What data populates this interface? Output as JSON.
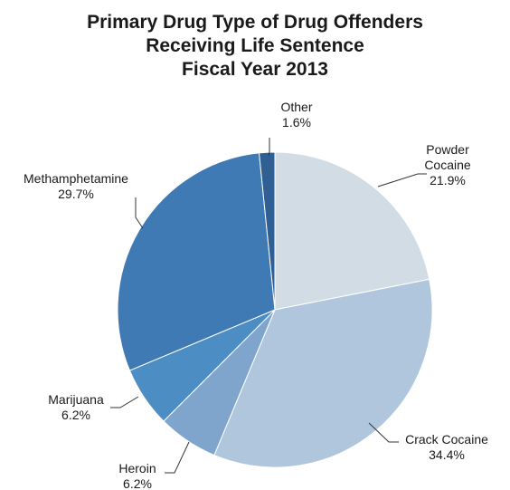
{
  "chart_data": {
    "type": "pie",
    "title": [
      "Primary Drug Type of Drug Offenders",
      "Receiving Life Sentence",
      "Fiscal Year 2013"
    ],
    "unit": "%",
    "slices": [
      {
        "label": [
          "Powder",
          "Cocaine"
        ],
        "value": 21.9,
        "value_text": "21.9%",
        "color": "#d1dce4"
      },
      {
        "label": [
          "Crack Cocaine"
        ],
        "value": 34.4,
        "value_text": "34.4%",
        "color": "#b0c6dd"
      },
      {
        "label": [
          "Heroin"
        ],
        "value": 6.2,
        "value_text": "6.2%",
        "color": "#80a5cd"
      },
      {
        "label": [
          "Marijuana"
        ],
        "value": 6.2,
        "value_text": "6.2%",
        "color": "#4c8dc4"
      },
      {
        "label": [
          "Methamphetamine"
        ],
        "value": 29.7,
        "value_text": "29.7%",
        "color": "#3f7ab5"
      },
      {
        "label": [
          "Other"
        ],
        "value": 1.6,
        "value_text": "1.6%",
        "color": "#2f5f93"
      }
    ]
  }
}
